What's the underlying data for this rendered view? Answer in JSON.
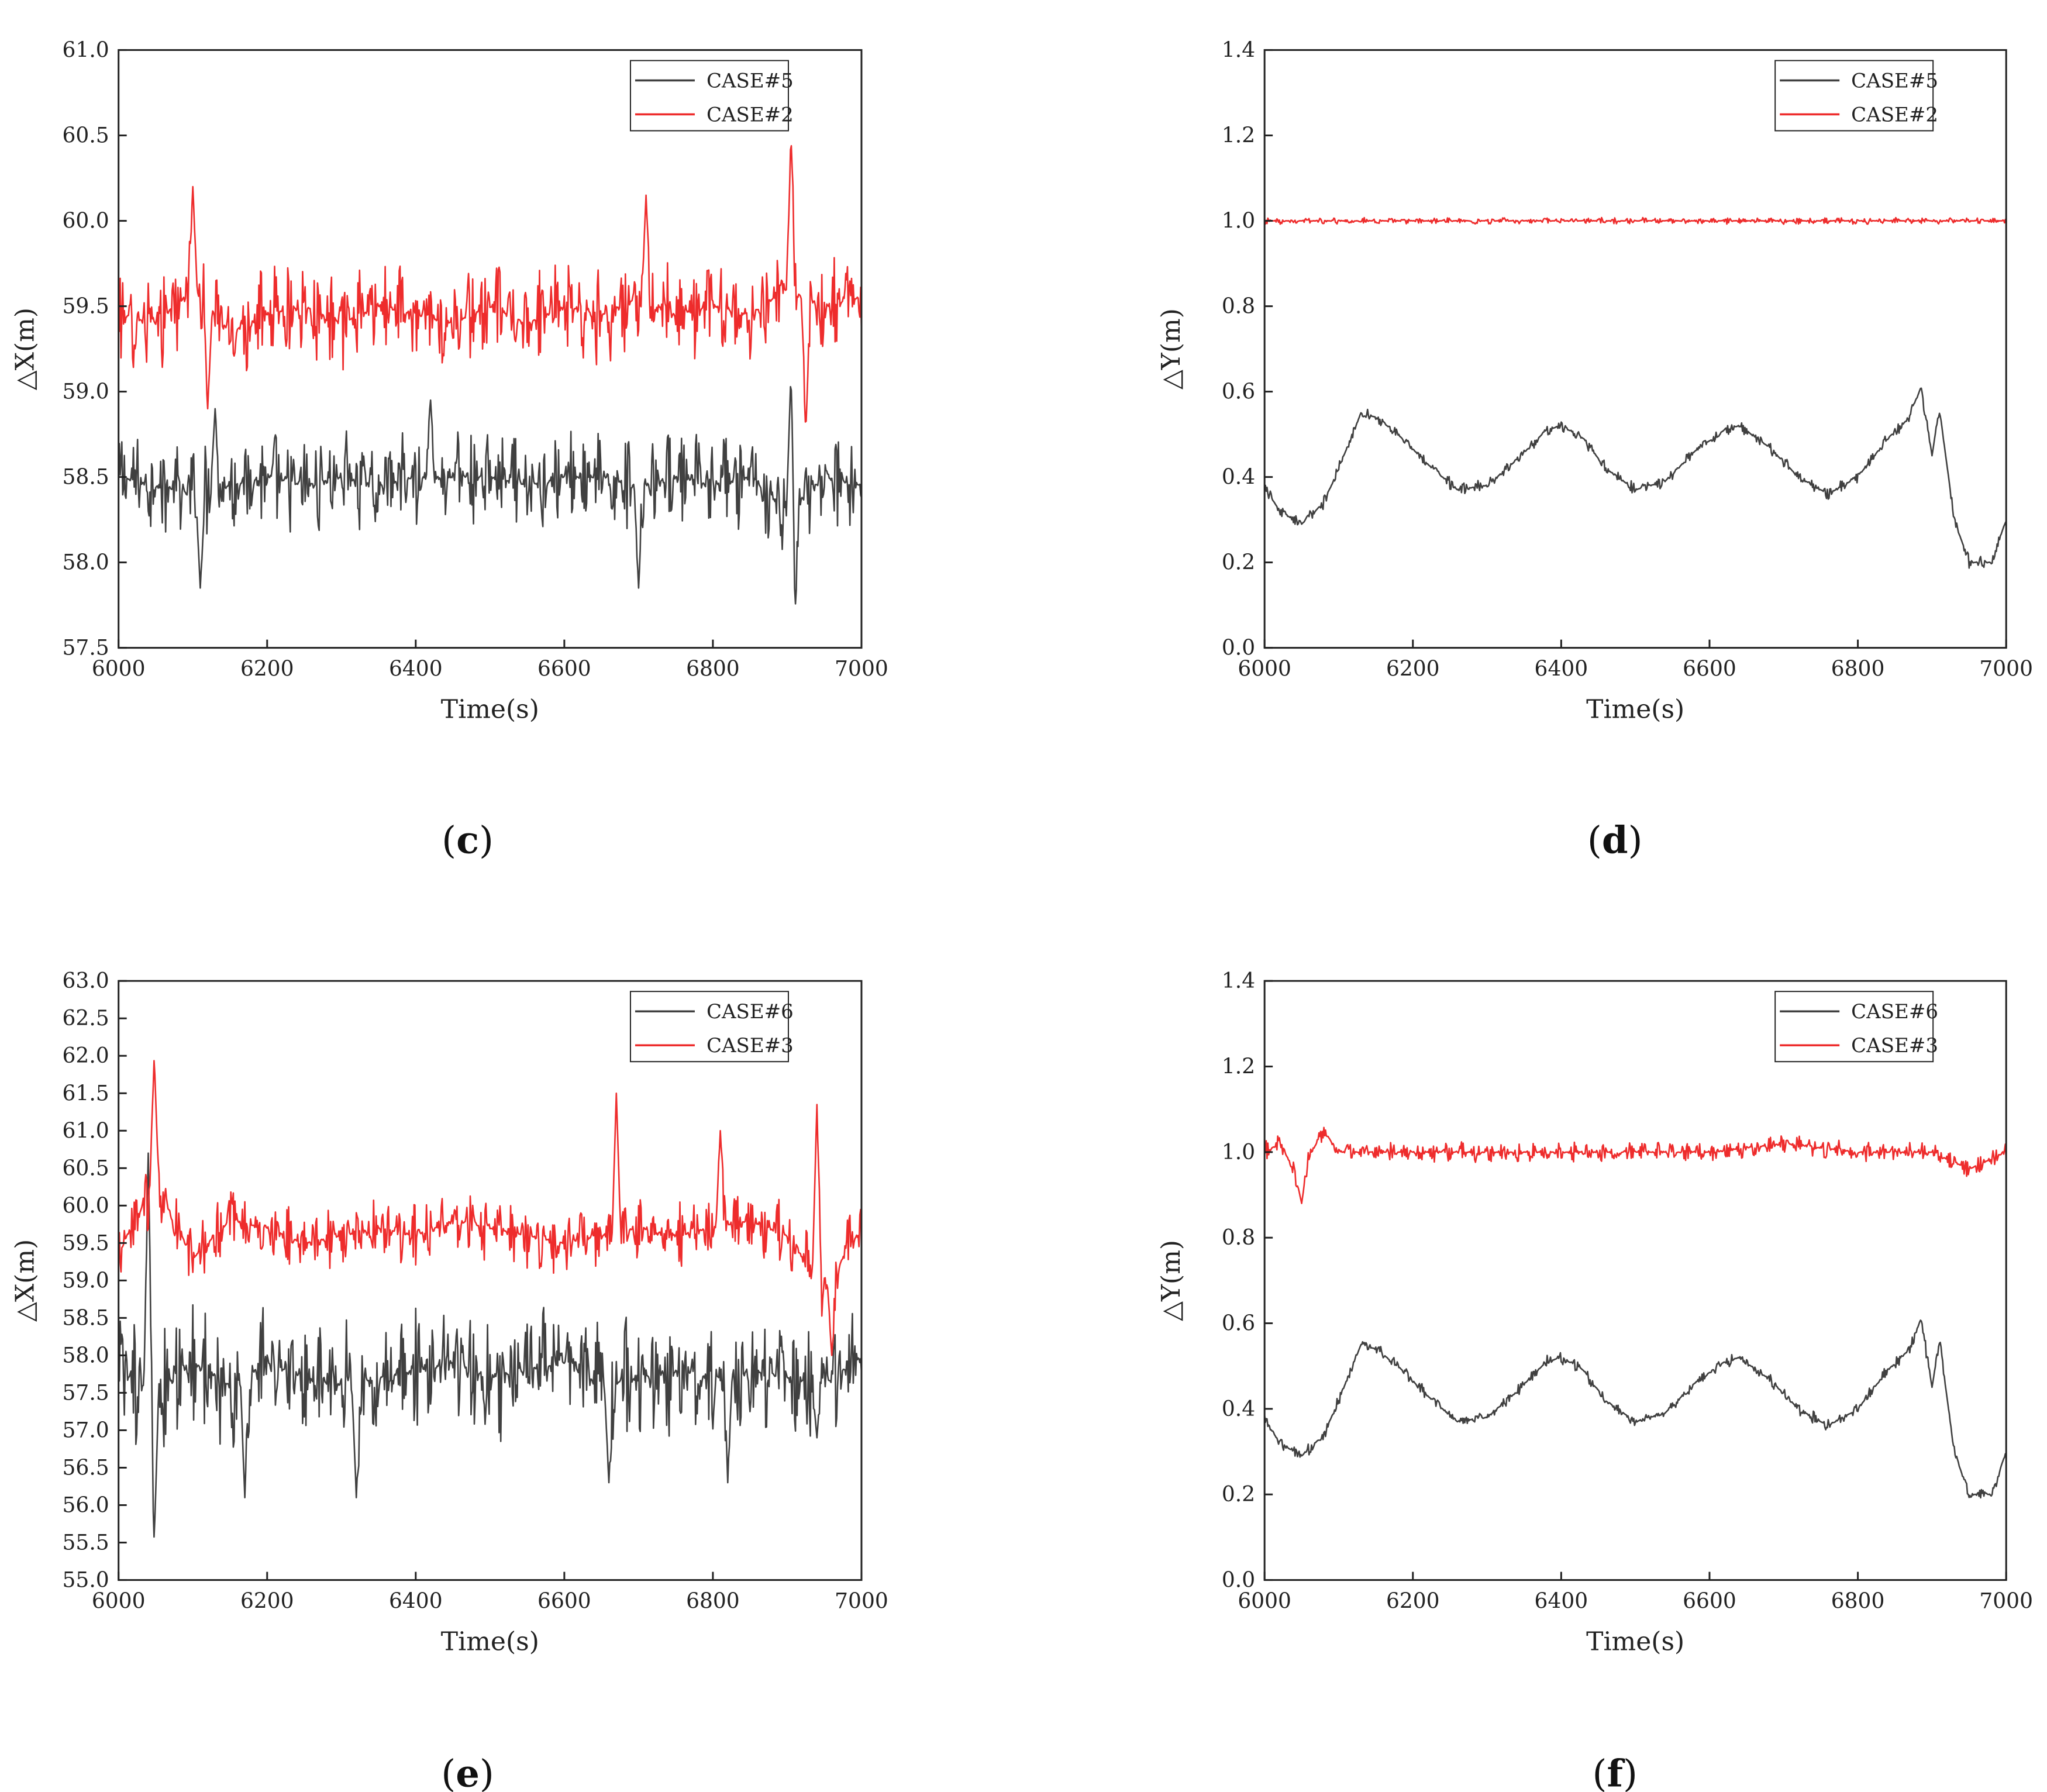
{
  "colors": {
    "dark": "#404040",
    "red": "#ee2c2c"
  },
  "chart_data": [
    {
      "panel": "(c)",
      "type": "line",
      "xlabel": "Time(s)",
      "ylabel": "△X(m)",
      "xlim": [
        6000,
        7000
      ],
      "ylim": [
        57.5,
        61.0
      ],
      "xticks": [
        "6000",
        "6200",
        "6400",
        "6600",
        "6800",
        "7000"
      ],
      "yticks": [
        "57.5",
        "58.0",
        "58.5",
        "59.0",
        "59.5",
        "60.0",
        "60.5",
        "61.0"
      ],
      "legend_position": "top-right",
      "series": [
        {
          "name": "CASE#5",
          "color": "#404040",
          "x": [
            6000,
            6050,
            6100,
            6150,
            6200,
            6250,
            6300,
            6350,
            6400,
            6450,
            6500,
            6550,
            6600,
            6650,
            6700,
            6750,
            6800,
            6850,
            6900,
            6950,
            7000
          ],
          "y": [
            58.5,
            58.45,
            58.4,
            58.45,
            58.5,
            58.45,
            58.5,
            58.45,
            58.5,
            58.5,
            58.5,
            58.45,
            58.5,
            58.5,
            58.45,
            58.5,
            58.45,
            58.5,
            58.3,
            58.5,
            58.45
          ],
          "jitter": 0.3,
          "spikes": [
            [
              6110,
              57.85
            ],
            [
              6130,
              58.9
            ],
            [
              6420,
              58.95
            ],
            [
              6700,
              57.85
            ],
            [
              6910,
              57.6
            ],
            [
              6905,
              59.1
            ]
          ]
        },
        {
          "name": "CASE#2",
          "color": "#ee2c2c",
          "x": [
            6000,
            6050,
            6100,
            6150,
            6200,
            6250,
            6300,
            6350,
            6400,
            6450,
            6500,
            6550,
            6600,
            6650,
            6700,
            6750,
            6800,
            6850,
            6900,
            6950,
            7000
          ],
          "y": [
            59.45,
            59.4,
            59.6,
            59.35,
            59.45,
            59.5,
            59.4,
            59.5,
            59.45,
            59.4,
            59.5,
            59.4,
            59.5,
            59.45,
            59.55,
            59.45,
            59.5,
            59.45,
            59.6,
            59.5,
            59.55
          ],
          "jitter": 0.3,
          "spikes": [
            [
              6100,
              60.2
            ],
            [
              6120,
              58.9
            ],
            [
              6710,
              60.15
            ],
            [
              6905,
              60.5
            ],
            [
              6925,
              58.75
            ]
          ]
        }
      ]
    },
    {
      "panel": "(d)",
      "type": "line",
      "xlabel": "Time(s)",
      "ylabel": "△Y(m)",
      "xlim": [
        6000,
        7000
      ],
      "ylim": [
        0.0,
        1.4
      ],
      "xticks": [
        "6000",
        "6200",
        "6400",
        "6600",
        "6800",
        "7000"
      ],
      "yticks": [
        "0.0",
        "0.2",
        "0.4",
        "0.6",
        "0.8",
        "1.0",
        "1.2",
        "1.4"
      ],
      "legend_position": "top-right",
      "series": [
        {
          "name": "CASE#5",
          "color": "#404040",
          "x": [
            6000,
            6020,
            6050,
            6080,
            6100,
            6130,
            6150,
            6180,
            6220,
            6260,
            6300,
            6340,
            6380,
            6400,
            6430,
            6460,
            6500,
            6540,
            6580,
            6620,
            6640,
            6680,
            6720,
            6760,
            6800,
            6840,
            6870,
            6885,
            6900,
            6910,
            6930,
            6950,
            6980,
            7000
          ],
          "y": [
            0.38,
            0.32,
            0.29,
            0.34,
            0.42,
            0.55,
            0.54,
            0.5,
            0.43,
            0.37,
            0.38,
            0.44,
            0.51,
            0.52,
            0.49,
            0.42,
            0.37,
            0.39,
            0.46,
            0.51,
            0.52,
            0.47,
            0.4,
            0.36,
            0.4,
            0.49,
            0.54,
            0.61,
            0.45,
            0.56,
            0.3,
            0.2,
            0.2,
            0.3
          ],
          "jitter": 0.015
        },
        {
          "name": "CASE#2",
          "color": "#ee2c2c",
          "x": [
            6000,
            7000
          ],
          "y": [
            1.0,
            1.0
          ],
          "jitter": 0.008
        }
      ]
    },
    {
      "panel": "(e)",
      "type": "line",
      "xlabel": "Time(s)",
      "ylabel": "△X(m)",
      "xlim": [
        6000,
        7000
      ],
      "ylim": [
        55.0,
        63.0
      ],
      "xticks": [
        "6000",
        "6200",
        "6400",
        "6600",
        "6800",
        "7000"
      ],
      "yticks": [
        "55.0",
        "55.5",
        "56.0",
        "56.5",
        "57.0",
        "57.5",
        "58.0",
        "58.5",
        "59.0",
        "59.5",
        "60.0",
        "60.5",
        "61.0",
        "61.5",
        "62.0",
        "62.5",
        "63.0"
      ],
      "legend_position": "top-right",
      "series": [
        {
          "name": "CASE#6",
          "color": "#404040",
          "x": [
            6000,
            6050,
            6100,
            6150,
            6200,
            6250,
            6300,
            6350,
            6400,
            6450,
            6500,
            6550,
            6600,
            6650,
            6700,
            6750,
            6800,
            6850,
            6900,
            6950,
            7000
          ],
          "y": [
            57.8,
            57.5,
            57.9,
            57.6,
            57.9,
            57.7,
            57.6,
            57.7,
            57.8,
            57.9,
            57.7,
            57.8,
            57.9,
            57.6,
            57.7,
            57.8,
            57.7,
            57.8,
            57.7,
            57.6,
            58.0
          ],
          "jitter": 0.9,
          "spikes": [
            [
              6048,
              55.5
            ],
            [
              6040,
              60.7
            ],
            [
              6170,
              56.1
            ],
            [
              6320,
              56.1
            ],
            [
              6660,
              56.3
            ],
            [
              6820,
              56.3
            ],
            [
              6940,
              56.9
            ]
          ]
        },
        {
          "name": "CASE#3",
          "color": "#ee2c2c",
          "x": [
            6000,
            6050,
            6100,
            6150,
            6200,
            6250,
            6300,
            6350,
            6400,
            6450,
            6500,
            6550,
            6600,
            6650,
            6700,
            6750,
            6800,
            6850,
            6900,
            6950,
            7000
          ],
          "y": [
            59.4,
            60.3,
            59.3,
            59.8,
            59.7,
            59.5,
            59.6,
            59.7,
            59.6,
            59.8,
            59.7,
            59.6,
            59.5,
            59.6,
            59.7,
            59.6,
            59.7,
            59.8,
            59.6,
            58.9,
            59.7
          ],
          "jitter": 0.45,
          "spikes": [
            [
              6048,
              62.0
            ],
            [
              6670,
              61.5
            ],
            [
              6810,
              61.0
            ],
            [
              6940,
              61.35
            ],
            [
              6960,
              58.0
            ]
          ]
        }
      ]
    },
    {
      "panel": "(f)",
      "type": "line",
      "xlabel": "Time(s)",
      "ylabel": "△Y(m)",
      "xlim": [
        6000,
        7000
      ],
      "ylim": [
        0.0,
        1.4
      ],
      "xticks": [
        "6000",
        "6200",
        "6400",
        "6600",
        "6800",
        "7000"
      ],
      "yticks": [
        "0.0",
        "0.2",
        "0.4",
        "0.6",
        "0.8",
        "1.0",
        "1.2",
        "1.4"
      ],
      "legend_position": "top-right",
      "series": [
        {
          "name": "CASE#6",
          "color": "#404040",
          "x": [
            6000,
            6020,
            6050,
            6080,
            6100,
            6130,
            6150,
            6180,
            6220,
            6260,
            6300,
            6340,
            6380,
            6400,
            6430,
            6460,
            6500,
            6540,
            6580,
            6620,
            6640,
            6680,
            6720,
            6760,
            6800,
            6840,
            6870,
            6885,
            6900,
            6910,
            6930,
            6950,
            6980,
            7000
          ],
          "y": [
            0.38,
            0.32,
            0.29,
            0.34,
            0.42,
            0.55,
            0.54,
            0.5,
            0.43,
            0.37,
            0.38,
            0.44,
            0.51,
            0.52,
            0.49,
            0.42,
            0.37,
            0.39,
            0.46,
            0.51,
            0.52,
            0.47,
            0.4,
            0.36,
            0.4,
            0.49,
            0.54,
            0.61,
            0.45,
            0.56,
            0.3,
            0.2,
            0.2,
            0.3
          ],
          "jitter": 0.015
        },
        {
          "name": "CASE#3",
          "color": "#ee2c2c",
          "x": [
            6000,
            6020,
            6040,
            6050,
            6060,
            6080,
            6100,
            6200,
            6300,
            6400,
            6500,
            6600,
            6700,
            6800,
            6900,
            6950,
            7000
          ],
          "y": [
            1.0,
            1.02,
            0.96,
            0.88,
            0.99,
            1.05,
            1.0,
            1.0,
            1.0,
            1.0,
            1.0,
            1.0,
            1.02,
            1.0,
            1.0,
            0.96,
            1.0
          ],
          "jitter": 0.025
        }
      ]
    }
  ]
}
